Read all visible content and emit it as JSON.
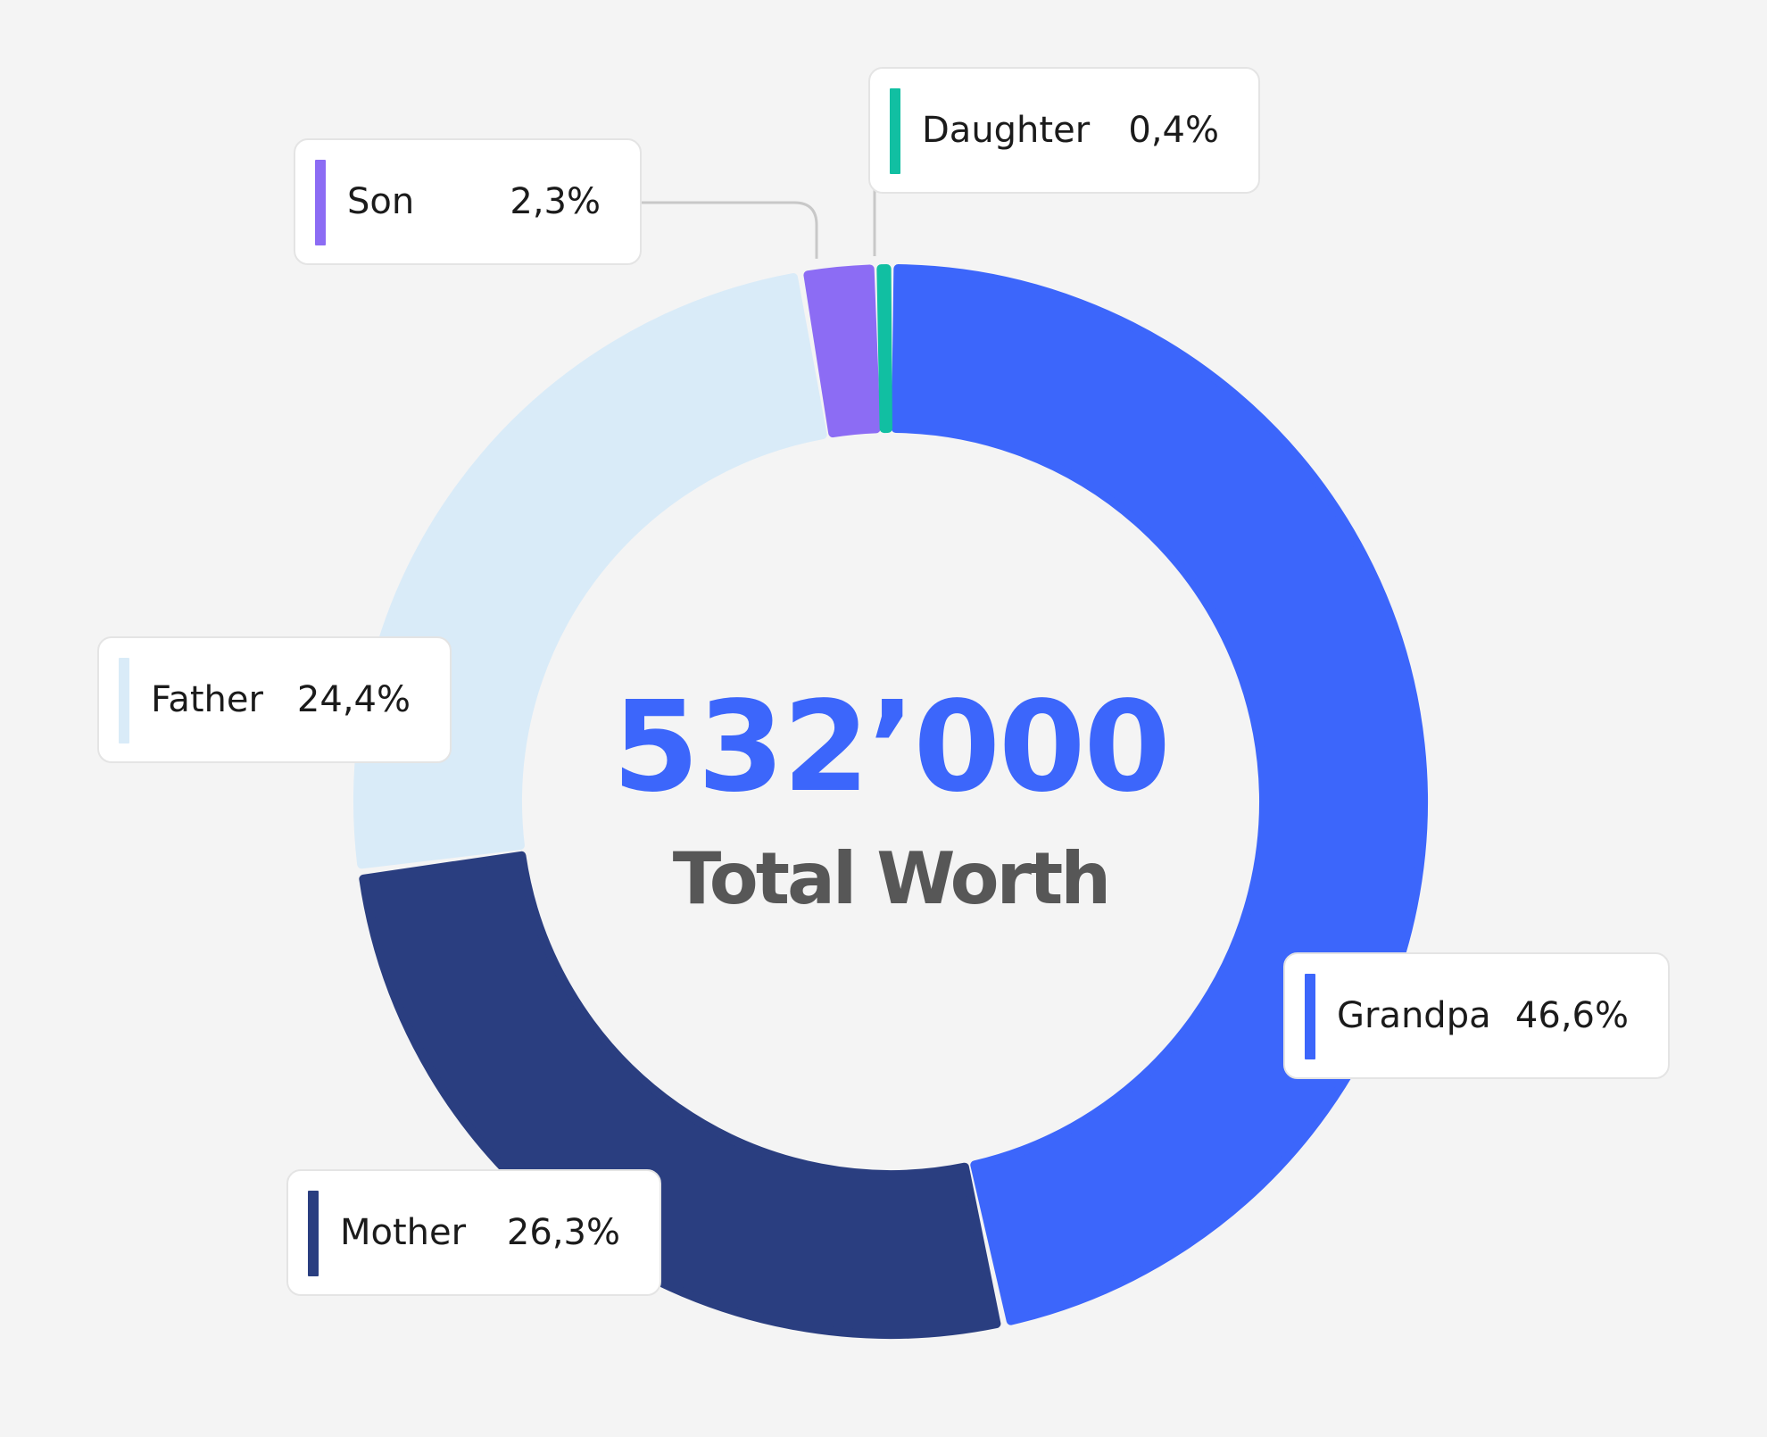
{
  "chart_data": {
    "type": "pie",
    "variant": "donut",
    "center_value": "532’000",
    "center_label": "Total Worth",
    "start_angle_deg": 0,
    "direction": "clockwise",
    "slices": [
      {
        "name": "Grandpa",
        "value": 46.6,
        "label": "46,6%",
        "color": "#3c66fb"
      },
      {
        "name": "Mother",
        "value": 26.3,
        "label": "26,3%",
        "color": "#2a3e80"
      },
      {
        "name": "Father",
        "value": 24.4,
        "label": "24,4%",
        "color": "#d9ebf8"
      },
      {
        "name": "Son",
        "value": 2.3,
        "label": "2,3%",
        "color": "#8c6cf4"
      },
      {
        "name": "Daughter",
        "value": 0.4,
        "label": "0,4%",
        "color": "#11bfa2"
      }
    ],
    "value_unit": "%"
  },
  "colors": {
    "background": "#f4f4f4",
    "center_value": "#3c66fb",
    "center_label": "#575757",
    "leader_line": "#c8c8c8"
  }
}
